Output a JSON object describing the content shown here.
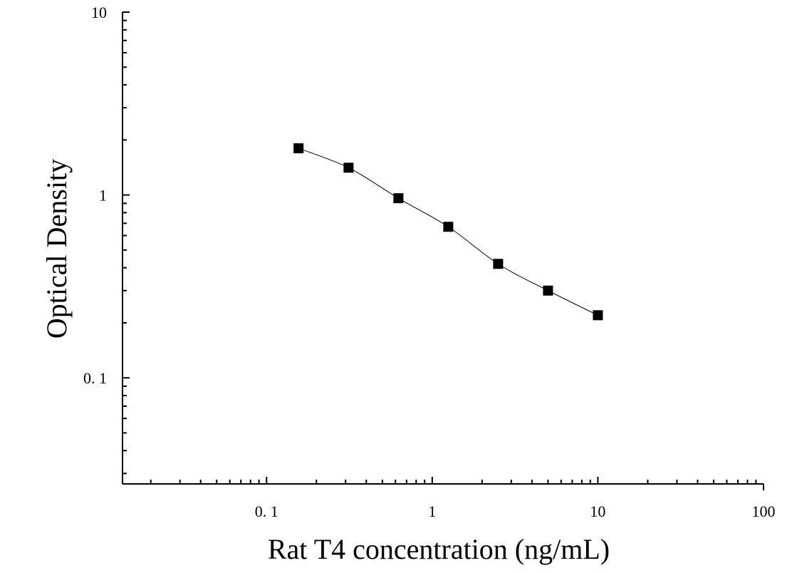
{
  "chart_data": {
    "type": "scatter",
    "xlabel": "Rat T4 concentration (ng/mL)",
    "ylabel": "Optical Density",
    "x_scale": "log",
    "y_scale": "log",
    "xlim": [
      0.0135,
      100
    ],
    "ylim": [
      0.0263,
      10
    ],
    "x_ticks": [
      0.1,
      1,
      10,
      100
    ],
    "x_tick_labels": [
      "0. 1",
      "1",
      "10",
      "100"
    ],
    "y_ticks": [
      0.1,
      1,
      10
    ],
    "y_tick_labels": [
      "0. 1",
      "1",
      "10"
    ],
    "series": [
      {
        "marker": "square",
        "color": "#000000",
        "points": [
          {
            "x": 0.156,
            "y": 1.8
          },
          {
            "x": 0.3125,
            "y": 1.41
          },
          {
            "x": 0.625,
            "y": 0.96
          },
          {
            "x": 1.25,
            "y": 0.67
          },
          {
            "x": 2.5,
            "y": 0.42
          },
          {
            "x": 5,
            "y": 0.3
          },
          {
            "x": 10,
            "y": 0.22
          }
        ]
      }
    ],
    "fit_curve": true,
    "grid": false,
    "legend": "none"
  }
}
